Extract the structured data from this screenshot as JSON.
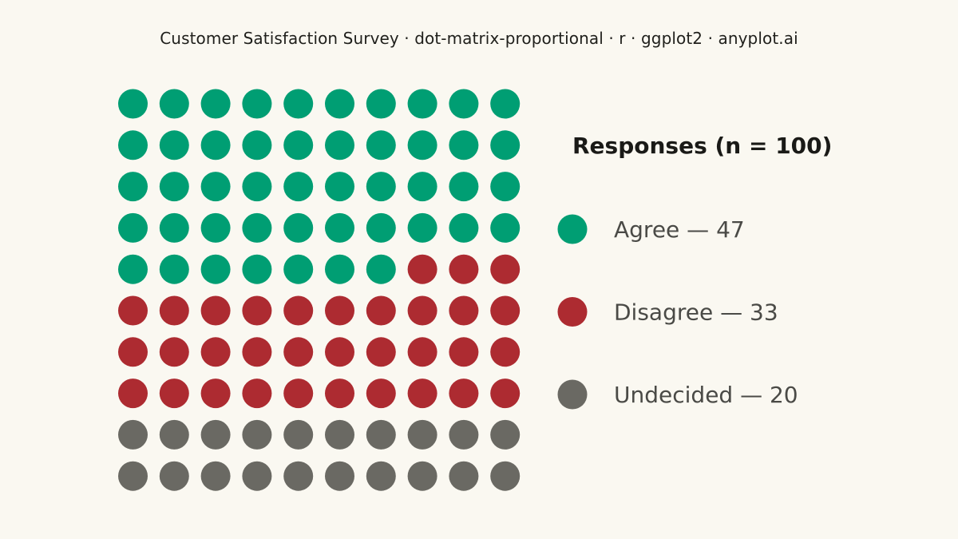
{
  "title": "Customer Satisfaction Survey · dot-matrix-proportional · r · ggplot2 · anyplot.ai",
  "chart_data": {
    "type": "dot-matrix",
    "title": "Customer Satisfaction Survey · dot-matrix-proportional · r · ggplot2 · anyplot.ai",
    "total": 100,
    "rows": 10,
    "cols": 10,
    "legend_title": "Responses (n = 100)",
    "legend_position": "right",
    "categories": [
      {
        "name": "Agree",
        "value": 47,
        "label": "Agree — 47",
        "color": "#009E73"
      },
      {
        "name": "Disagree",
        "value": 33,
        "label": "Disagree — 33",
        "color": "#AD2B31"
      },
      {
        "name": "Undecided",
        "value": 20,
        "label": "Undecided — 20",
        "color": "#6A6963"
      }
    ]
  }
}
